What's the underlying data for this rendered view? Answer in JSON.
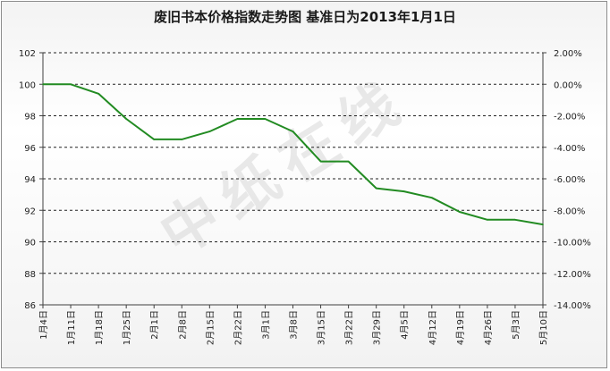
{
  "chart_data": {
    "type": "line",
    "title": "废旧书本价格指数走势图 基准日为2013年1月1日",
    "watermark": "中纸在线",
    "categories": [
      "1月4日",
      "1月11日",
      "1月18日",
      "1月25日",
      "2月1日",
      "2月8日",
      "2月15日",
      "2月22日",
      "3月1日",
      "3月8日",
      "3月15日",
      "3月22日",
      "3月29日",
      "4月5日",
      "4月12日",
      "4月19日",
      "4月26日",
      "5月3日",
      "5月10日"
    ],
    "series": [
      {
        "values": [
          100.0,
          100.0,
          99.4,
          97.8,
          96.5,
          96.5,
          97.0,
          97.8,
          97.8,
          97.0,
          95.1,
          95.1,
          93.4,
          93.2,
          92.8,
          91.9,
          91.4,
          91.4,
          91.1
        ]
      }
    ],
    "ylim": [
      86,
      102
    ],
    "yticks_left": [
      "86",
      "88",
      "90",
      "92",
      "94",
      "96",
      "98",
      "100",
      "102"
    ],
    "yticks_right": [
      "-14.00%",
      "-12.00%",
      "-10.00%",
      "-8.00%",
      "-6.00%",
      "-4.00%",
      "-2.00%",
      "0.00%",
      "2.00%"
    ],
    "grid": true,
    "colors": {
      "line": "#228b22",
      "grid": "#222222",
      "axis": "#404040"
    }
  }
}
